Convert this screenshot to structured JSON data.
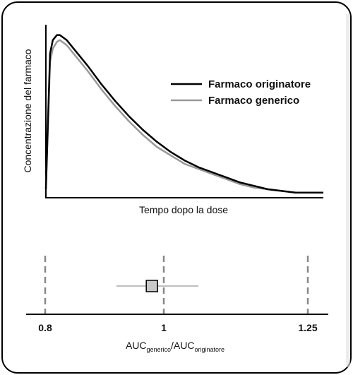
{
  "chart_data": [
    {
      "type": "line",
      "xlabel": "Tempo dopo la dose",
      "ylabel": "Concentrazione del farmaco",
      "grid": false,
      "legend_position": "right",
      "x": [
        0,
        0.3,
        0.5,
        0.8,
        1,
        1.5,
        2,
        3,
        4,
        5,
        6,
        7,
        8,
        9,
        10,
        11,
        12,
        13,
        14,
        15,
        16,
        17,
        18,
        19,
        20
      ],
      "series": [
        {
          "name": "Farmaco originatore",
          "color": "#000000",
          "values": [
            0.05,
            0.85,
            0.93,
            0.96,
            0.96,
            0.93,
            0.88,
            0.78,
            0.67,
            0.57,
            0.48,
            0.4,
            0.33,
            0.27,
            0.22,
            0.18,
            0.15,
            0.12,
            0.09,
            0.07,
            0.05,
            0.04,
            0.03,
            0.03,
            0.03
          ]
        },
        {
          "name": "Farmaco generico",
          "color": "#999999",
          "values": [
            0.05,
            0.8,
            0.88,
            0.92,
            0.93,
            0.9,
            0.85,
            0.75,
            0.64,
            0.54,
            0.45,
            0.37,
            0.3,
            0.25,
            0.2,
            0.17,
            0.14,
            0.11,
            0.08,
            0.06,
            0.05,
            0.04,
            0.03,
            0.03,
            0.03
          ]
        }
      ]
    },
    {
      "type": "forest",
      "xlabel_main": "AUC",
      "xlabel_sub1": "generico",
      "xlabel_mid": "/AUC",
      "xlabel_sub2": "originatore",
      "xlim": [
        0.8,
        1.25
      ],
      "ticks": [
        {
          "label": "0.8",
          "value": 0.8
        },
        {
          "label": "1",
          "value": 1.0
        },
        {
          "label": "1.25",
          "value": 1.25
        }
      ],
      "reference_lines": [
        0.8,
        1.0,
        1.25
      ],
      "estimate": 0.98,
      "ci": [
        0.92,
        1.06
      ],
      "marker_color": "#c8c8c8"
    }
  ]
}
